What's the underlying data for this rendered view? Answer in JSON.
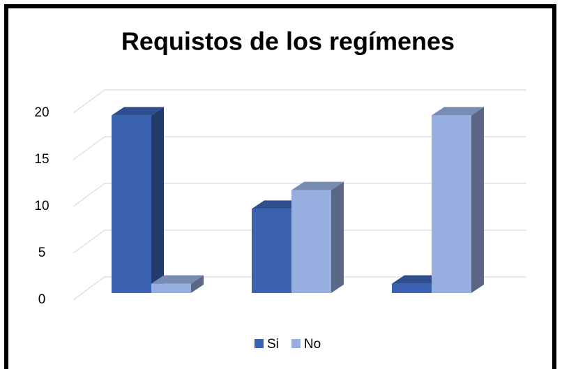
{
  "chart_data": {
    "type": "bar3d",
    "title": "Requistos de los regímenes",
    "categories": [
      null,
      null,
      null
    ],
    "series": [
      {
        "name": "Si",
        "color": "#3a62b0",
        "values": [
          19,
          9,
          1
        ]
      },
      {
        "name": "No",
        "color": "#96aee0",
        "values": [
          1,
          11,
          19
        ]
      }
    ],
    "ylim": [
      0,
      20
    ],
    "yticks": [
      0,
      5,
      10,
      15,
      20
    ],
    "grid": true,
    "legend": "bottom"
  }
}
